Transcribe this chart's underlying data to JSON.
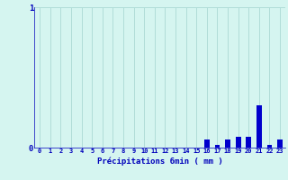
{
  "title": "",
  "xlabel": "Précipitations 6min ( mm )",
  "hours": [
    0,
    1,
    2,
    3,
    4,
    5,
    6,
    7,
    8,
    9,
    10,
    11,
    12,
    13,
    14,
    15,
    16,
    17,
    18,
    19,
    20,
    21,
    22,
    23
  ],
  "values": [
    0,
    0,
    0,
    0,
    0,
    0,
    0,
    0,
    0,
    0,
    0,
    0,
    0,
    0,
    0,
    0,
    0.06,
    0.02,
    0.06,
    0.08,
    0.08,
    0.3,
    0.02,
    0.06
  ],
  "bar_color": "#0000cc",
  "bg_color": "#d5f5f0",
  "grid_color": "#b0ddd8",
  "text_color": "#0000bb",
  "ylim": [
    0,
    1.0
  ],
  "yticks": [
    0,
    1
  ],
  "bar_width": 0.5
}
